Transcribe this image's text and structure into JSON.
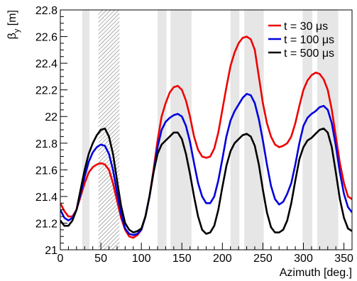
{
  "chart_data": {
    "type": "line",
    "title": "",
    "xlabel": "Azimuth [deg.]",
    "ylabel_main": "β",
    "ylabel_sub": "y",
    "ylabel_unit": " [m]",
    "xlim": [
      0,
      360
    ],
    "ylim": [
      21.0,
      22.8
    ],
    "xticks": [
      0,
      50,
      100,
      150,
      200,
      250,
      300,
      350
    ],
    "xtick_labels": [
      "0",
      "50",
      "100",
      "150",
      "200",
      "250",
      "300",
      "350"
    ],
    "yticks": [
      21.0,
      21.2,
      21.4,
      21.6,
      21.8,
      22.0,
      22.2,
      22.4,
      22.6,
      22.8
    ],
    "ytick_labels": [
      "21",
      "21.2",
      "21.4",
      "21.6",
      "21.8",
      "22",
      "22.2",
      "22.4",
      "22.6",
      "22.8"
    ],
    "grid": false,
    "legend_position": "top-right",
    "shaded_regions": [
      [
        27,
        36
      ],
      [
        120,
        131
      ],
      [
        136,
        162
      ],
      [
        210,
        221
      ],
      [
        227,
        251
      ],
      [
        299,
        311
      ],
      [
        317,
        343
      ]
    ],
    "hatched_regions": [
      [
        47,
        73
      ]
    ],
    "series": [
      {
        "name": "t = 30 μs",
        "color": "#ee0000",
        "x": [
          0,
          5,
          10,
          15,
          20,
          25,
          30,
          35,
          40,
          45,
          50,
          55,
          60,
          65,
          70,
          75,
          80,
          85,
          90,
          95,
          100,
          105,
          110,
          115,
          120,
          125,
          130,
          135,
          140,
          145,
          150,
          155,
          160,
          165,
          170,
          175,
          180,
          185,
          190,
          195,
          200,
          205,
          210,
          215,
          220,
          225,
          230,
          235,
          240,
          245,
          250,
          255,
          260,
          265,
          270,
          275,
          280,
          285,
          290,
          295,
          300,
          305,
          310,
          315,
          320,
          325,
          330,
          335,
          340,
          345,
          350,
          355,
          360
        ],
        "y": [
          21.35,
          21.29,
          21.25,
          21.25,
          21.3,
          21.4,
          21.5,
          21.58,
          21.62,
          21.64,
          21.65,
          21.64,
          21.6,
          21.5,
          21.37,
          21.24,
          21.15,
          21.1,
          21.09,
          21.11,
          21.15,
          21.25,
          21.4,
          21.6,
          21.82,
          22.0,
          22.1,
          22.18,
          22.22,
          22.23,
          22.2,
          22.12,
          22.0,
          21.85,
          21.75,
          21.7,
          21.69,
          21.7,
          21.76,
          21.88,
          22.05,
          22.22,
          22.38,
          22.48,
          22.55,
          22.59,
          22.6,
          22.58,
          22.5,
          22.3,
          22.1,
          21.95,
          21.85,
          21.79,
          21.77,
          21.78,
          21.8,
          21.85,
          21.95,
          22.08,
          22.2,
          22.27,
          22.31,
          22.33,
          22.32,
          22.28,
          22.2,
          22.05,
          21.85,
          21.65,
          21.5,
          21.4,
          21.38
        ]
      },
      {
        "name": "t = 100 μs",
        "color": "#0000dd",
        "x": [
          0,
          5,
          10,
          15,
          20,
          25,
          30,
          35,
          40,
          45,
          50,
          55,
          60,
          65,
          70,
          75,
          80,
          85,
          90,
          95,
          100,
          105,
          110,
          115,
          120,
          125,
          130,
          135,
          140,
          145,
          150,
          155,
          160,
          165,
          170,
          175,
          180,
          185,
          190,
          195,
          200,
          205,
          210,
          215,
          220,
          225,
          230,
          235,
          240,
          245,
          250,
          255,
          260,
          265,
          270,
          275,
          280,
          285,
          290,
          295,
          300,
          305,
          310,
          315,
          320,
          325,
          330,
          335,
          340,
          345,
          350,
          355,
          360
        ],
        "y": [
          21.3,
          21.24,
          21.22,
          21.24,
          21.3,
          21.42,
          21.55,
          21.66,
          21.73,
          21.77,
          21.79,
          21.78,
          21.72,
          21.6,
          21.43,
          21.27,
          21.16,
          21.12,
          21.11,
          21.12,
          21.15,
          21.25,
          21.4,
          21.58,
          21.77,
          21.9,
          21.96,
          21.99,
          22.01,
          22.02,
          22.0,
          21.93,
          21.81,
          21.65,
          21.5,
          21.4,
          21.35,
          21.35,
          21.4,
          21.52,
          21.68,
          21.85,
          21.97,
          22.04,
          22.09,
          22.14,
          22.17,
          22.16,
          22.1,
          21.98,
          21.82,
          21.64,
          21.48,
          21.38,
          21.34,
          21.36,
          21.42,
          21.5,
          21.64,
          21.8,
          21.93,
          21.99,
          22.02,
          22.04,
          22.07,
          22.08,
          22.05,
          21.95,
          21.78,
          21.58,
          21.42,
          21.32,
          21.28
        ]
      },
      {
        "name": "t = 500 μs",
        "color": "#000000",
        "x": [
          0,
          5,
          10,
          15,
          20,
          25,
          30,
          35,
          40,
          45,
          50,
          55,
          60,
          65,
          70,
          75,
          80,
          85,
          90,
          95,
          100,
          105,
          110,
          115,
          120,
          125,
          130,
          135,
          140,
          145,
          150,
          155,
          160,
          165,
          170,
          175,
          180,
          185,
          190,
          195,
          200,
          205,
          210,
          215,
          220,
          225,
          230,
          235,
          240,
          245,
          250,
          255,
          260,
          265,
          270,
          275,
          280,
          285,
          290,
          295,
          300,
          305,
          310,
          315,
          320,
          325,
          330,
          335,
          340,
          345,
          350,
          355,
          360
        ],
        "y": [
          21.22,
          21.18,
          21.18,
          21.22,
          21.3,
          21.45,
          21.6,
          21.72,
          21.8,
          21.86,
          21.9,
          21.91,
          21.85,
          21.72,
          21.52,
          21.33,
          21.2,
          21.15,
          21.13,
          21.14,
          21.16,
          21.25,
          21.4,
          21.58,
          21.72,
          21.79,
          21.82,
          21.85,
          21.88,
          21.88,
          21.83,
          21.72,
          21.57,
          21.4,
          21.25,
          21.15,
          21.12,
          21.13,
          21.18,
          21.3,
          21.47,
          21.63,
          21.74,
          21.8,
          21.83,
          21.86,
          21.87,
          21.85,
          21.78,
          21.64,
          21.45,
          21.28,
          21.17,
          21.13,
          21.13,
          21.15,
          21.22,
          21.35,
          21.52,
          21.68,
          21.77,
          21.82,
          21.84,
          21.87,
          21.9,
          21.91,
          21.88,
          21.77,
          21.58,
          21.38,
          21.24,
          21.16,
          21.14
        ]
      }
    ]
  }
}
